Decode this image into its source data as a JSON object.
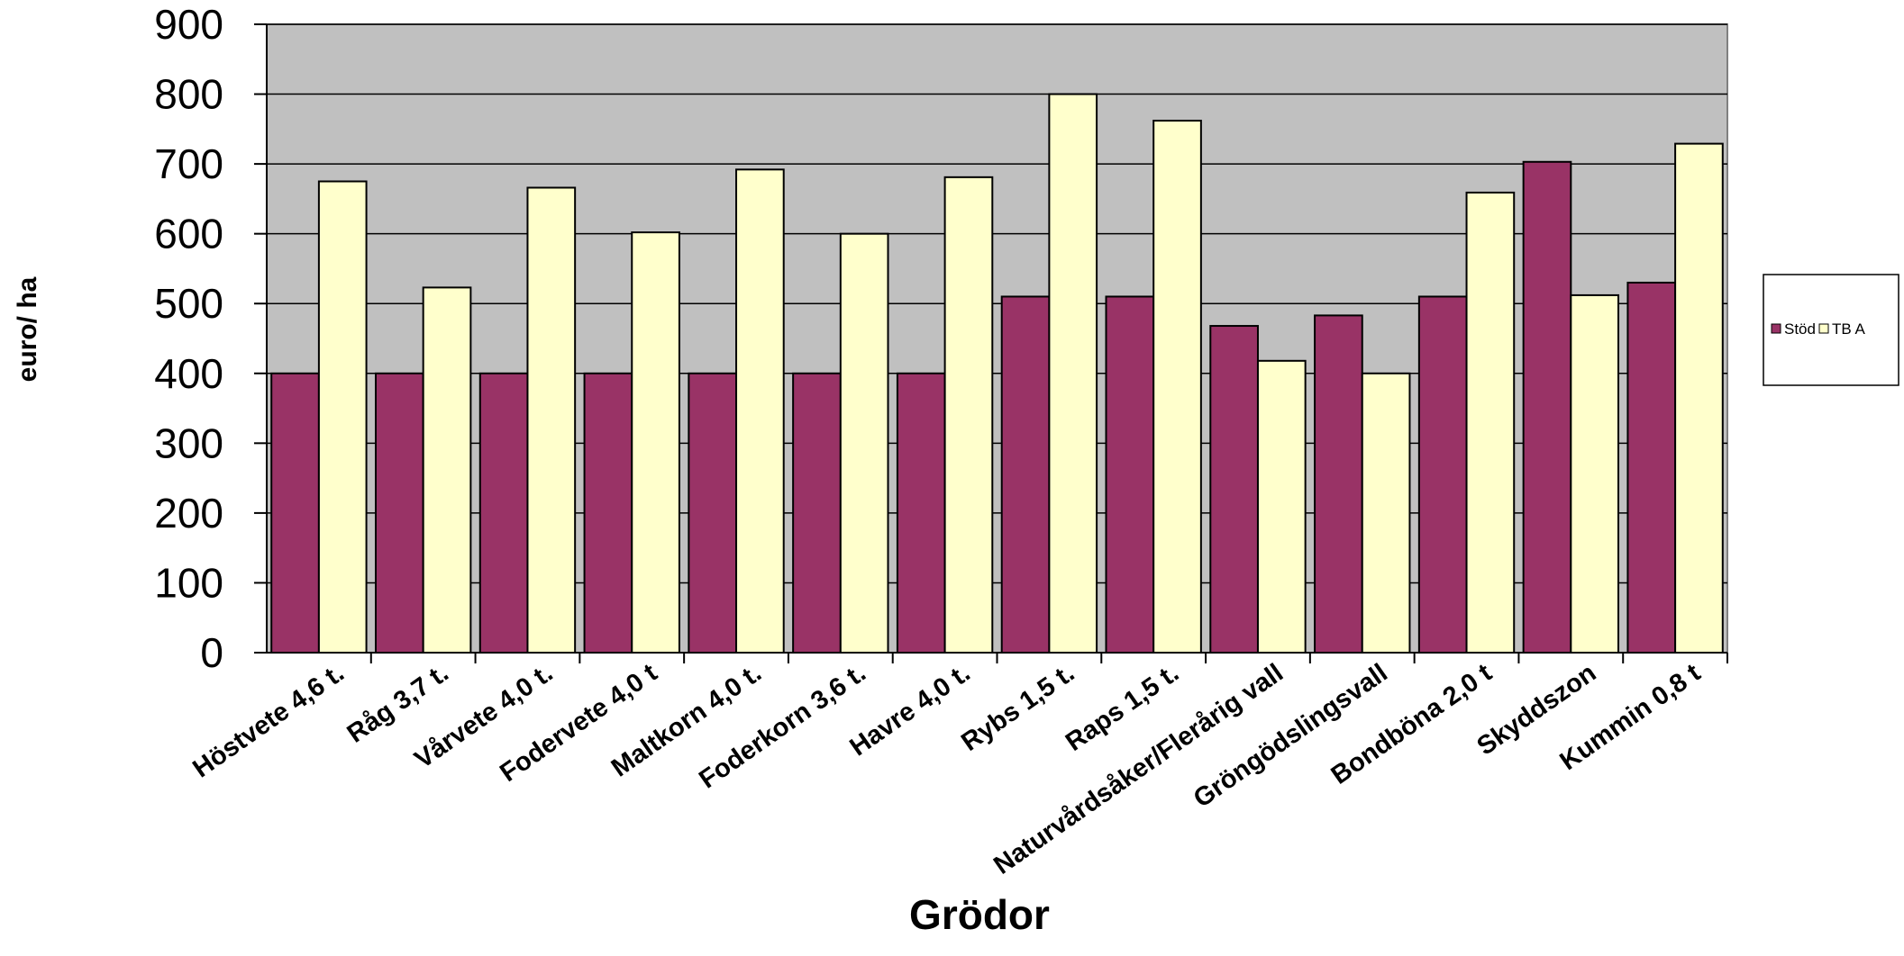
{
  "chart_data": {
    "type": "bar",
    "title": "",
    "xlabel": "Grödor",
    "ylabel": "euro/ ha",
    "ylim": [
      0,
      900
    ],
    "yticks": [
      0,
      100,
      200,
      300,
      400,
      500,
      600,
      700,
      800,
      900
    ],
    "grid": true,
    "legend_position": "right",
    "plot_background": "#C0C0C0",
    "categories": [
      "Höstvete 4,6 t.",
      "Råg 3,7 t.",
      "Vårvete 4,0 t.",
      "Fodervete 4,0 t",
      "Maltkorn 4,0 t.",
      "Foderkorn 3,6 t.",
      "Havre 4,0 t.",
      "Rybs 1,5 t.",
      "Raps 1,5 t.",
      "Naturvårdsåker/Flerårig vall",
      "Gröngödslingsvall",
      "Bondböna 2,0 t",
      "Skyddszon",
      "Kummin 0,8 t"
    ],
    "series": [
      {
        "name": "Stöd",
        "color": "#993366",
        "values": [
          400,
          400,
          400,
          400,
          400,
          400,
          400,
          510,
          510,
          468,
          483,
          510,
          703,
          530
        ]
      },
      {
        "name": "TB A",
        "color": "#FFFFCC",
        "values": [
          675,
          523,
          666,
          602,
          692,
          600,
          681,
          800,
          762,
          418,
          400,
          659,
          512,
          729
        ]
      }
    ]
  }
}
